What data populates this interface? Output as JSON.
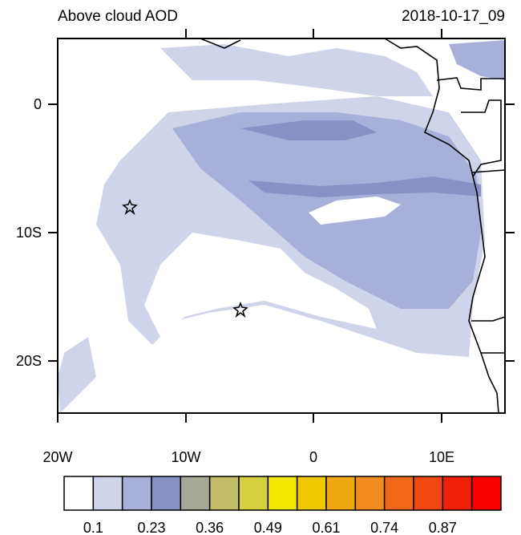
{
  "title": "Above cloud AOD",
  "timestamp": "2018-10-17_09",
  "x_axis": {
    "labels": [
      "20W",
      "10W",
      "0",
      "10E"
    ]
  },
  "y_axis": {
    "labels": [
      "0",
      "10S",
      "20S"
    ]
  },
  "colorbar": {
    "colors": [
      "#ffffff",
      "#d0d4ea",
      "#a8b0da",
      "#8890c4",
      "#a4a894",
      "#c0bc68",
      "#d4d040",
      "#f0e800",
      "#f0c800",
      "#f0a810",
      "#f08c20",
      "#f06818",
      "#f04810",
      "#f02008",
      "#f80000"
    ],
    "labels": [
      "0.1",
      "0.23",
      "0.36",
      "0.49",
      "0.61",
      "0.74",
      "0.87"
    ]
  }
}
